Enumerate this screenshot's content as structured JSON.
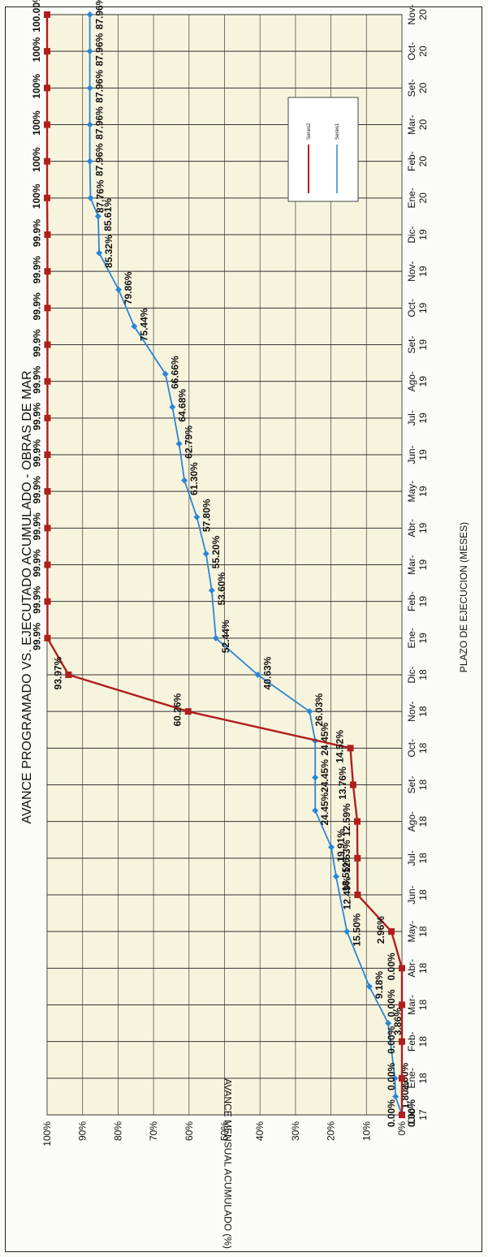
{
  "chart_data": {
    "type": "line",
    "title": "AVANCE PROGRAMADO VS. EJECUTADO ACUMULADO - OBRAS DE MAR",
    "xlabel": "PLAZO DE EJECUCION  (MESES)",
    "ylabel": "AVANCE MENSUAL ACUMULADO (%)",
    "ylim": [
      0,
      100
    ],
    "y_ticks": [
      "0%",
      "10%",
      "20%",
      "30%",
      "40%",
      "50%",
      "60%",
      "70%",
      "80%",
      "90%",
      "100%"
    ],
    "categories": [
      "Dic-17",
      "Ene-18",
      "Feb-18",
      "Mar-18",
      "Abr-18",
      "May-18",
      "Jun-18",
      "Jul-18",
      "Ago-18",
      "Set-18",
      "Oct-18",
      "Nov-18",
      "Dic-18",
      "Ene-19",
      "Feb-19",
      "Mar-19",
      "Abr-19",
      "May-19",
      "Jun-19",
      "Jul-19",
      "Ago-19",
      "Set-19",
      "Oct-19",
      "Nov-19",
      "Dic-19",
      "Ene-20",
      "Feb-20",
      "Mar-20",
      "Set-20",
      "Oct-20",
      "Nov-20"
    ],
    "grid": true,
    "legend_position": "top-right",
    "series": [
      {
        "name": "Series1",
        "color": "#2a86d6",
        "marker": "diamond",
        "points": [
          {
            "x": 0,
            "y": 0.0,
            "label": "0.00%"
          },
          {
            "x": 0.5,
            "y": 1.8,
            "label": "1.80%"
          },
          {
            "x": 1,
            "y": 2.0,
            "label": "2.00%"
          },
          {
            "x": 2.5,
            "y": 3.86,
            "label": "3.86%"
          },
          {
            "x": 3.5,
            "y": 9.18,
            "label": "9.18%"
          },
          {
            "x": 5,
            "y": 15.5,
            "label": "15.50%"
          },
          {
            "x": 6.5,
            "y": 18.55,
            "label": "18.55%"
          },
          {
            "x": 7.3,
            "y": 19.91,
            "label": "19.91%"
          },
          {
            "x": 8.3,
            "y": 24.45,
            "label": "24.45%"
          },
          {
            "x": 9.2,
            "y": 24.45,
            "label": "24.45%"
          },
          {
            "x": 10.2,
            "y": 24.45,
            "label": "24.45%"
          },
          {
            "x": 11,
            "y": 26.03,
            "label": "26.03%"
          },
          {
            "x": 12,
            "y": 40.63,
            "label": "40.63%"
          },
          {
            "x": 13,
            "y": 52.44,
            "label": "52.44%"
          },
          {
            "x": 14.3,
            "y": 53.6,
            "label": "53.60%"
          },
          {
            "x": 15.3,
            "y": 55.2,
            "label": "55.20%"
          },
          {
            "x": 16.3,
            "y": 57.8,
            "label": "57.80%"
          },
          {
            "x": 17.3,
            "y": 61.3,
            "label": "61.30%"
          },
          {
            "x": 18.3,
            "y": 62.79,
            "label": "62.79%"
          },
          {
            "x": 19.3,
            "y": 64.68,
            "label": "64.68%"
          },
          {
            "x": 20.2,
            "y": 66.66,
            "label": "66.66%"
          },
          {
            "x": 21.5,
            "y": 75.44,
            "label": "75.44%"
          },
          {
            "x": 22.5,
            "y": 79.86,
            "label": "79.86%"
          },
          {
            "x": 23.5,
            "y": 85.32,
            "label": "85.32%"
          },
          {
            "x": 24.5,
            "y": 85.61,
            "label": "85.61%"
          },
          {
            "x": 25,
            "y": 87.76,
            "label": "87.76%"
          },
          {
            "x": 26,
            "y": 87.96,
            "label": "87.96%"
          },
          {
            "x": 27,
            "y": 87.96,
            "label": "87.96%"
          },
          {
            "x": 28,
            "y": 87.96,
            "label": "87.96%"
          },
          {
            "x": 29,
            "y": 87.96,
            "label": "87.96%"
          },
          {
            "x": 30,
            "y": 87.96,
            "label": "87.96%"
          }
        ]
      },
      {
        "name": "Series2",
        "color": "#b01e1e",
        "marker": "square",
        "points": [
          {
            "x": 0,
            "y": 0.0,
            "label": "0.00%"
          },
          {
            "x": 1,
            "y": 0.0,
            "label": "0.00%"
          },
          {
            "x": 2,
            "y": 0.0,
            "label": "0.00%"
          },
          {
            "x": 3,
            "y": 0.0,
            "label": "0.00%"
          },
          {
            "x": 4,
            "y": 0.0,
            "label": "0.00%"
          },
          {
            "x": 5,
            "y": 2.96,
            "label": "2.96%"
          },
          {
            "x": 6,
            "y": 12.49,
            "label": "12.49%"
          },
          {
            "x": 7,
            "y": 12.53,
            "label": "12.53%"
          },
          {
            "x": 8,
            "y": 12.59,
            "label": "12.59%"
          },
          {
            "x": 9,
            "y": 13.76,
            "label": "13.76%"
          },
          {
            "x": 10,
            "y": 14.52,
            "label": "14.52%"
          },
          {
            "x": 11,
            "y": 60.26,
            "label": "60.26%"
          },
          {
            "x": 12,
            "y": 93.97,
            "label": "93.97%"
          },
          {
            "x": 13,
            "y": 99.9,
            "label": "99.9%"
          },
          {
            "x": 14,
            "y": 99.9,
            "label": "99.9%"
          },
          {
            "x": 15,
            "y": 99.9,
            "label": "99.9%"
          },
          {
            "x": 16,
            "y": 99.9,
            "label": "99.9%"
          },
          {
            "x": 17,
            "y": 99.9,
            "label": "99.9%"
          },
          {
            "x": 18,
            "y": 99.9,
            "label": "99.9%"
          },
          {
            "x": 19,
            "y": 99.9,
            "label": "99.9%"
          },
          {
            "x": 20,
            "y": 99.9,
            "label": "99.9%"
          },
          {
            "x": 21,
            "y": 99.9,
            "label": "99.9%"
          },
          {
            "x": 22,
            "y": 99.9,
            "label": "99.9%"
          },
          {
            "x": 23,
            "y": 99.9,
            "label": "99.9%"
          },
          {
            "x": 24,
            "y": 99.9,
            "label": "99.9%"
          },
          {
            "x": 25,
            "y": 100.0,
            "label": "100%"
          },
          {
            "x": 26,
            "y": 100.0,
            "label": "100%"
          },
          {
            "x": 27,
            "y": 100.0,
            "label": "100%"
          },
          {
            "x": 28,
            "y": 100.0,
            "label": "100%"
          },
          {
            "x": 29,
            "y": 100.0,
            "label": "100%"
          },
          {
            "x": 30,
            "y": 100.0,
            "label": "100.00%"
          }
        ]
      }
    ]
  }
}
